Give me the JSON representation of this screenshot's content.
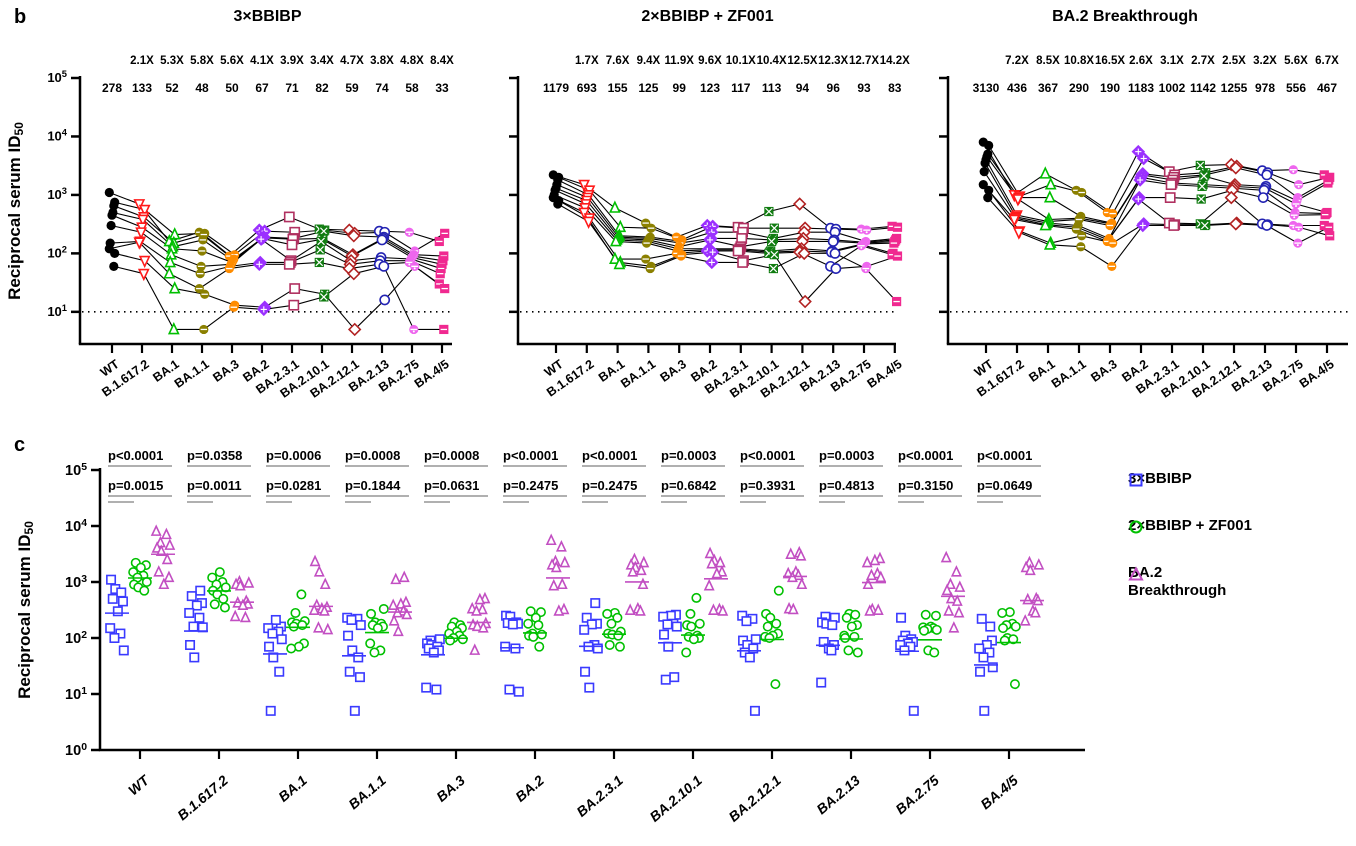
{
  "figure": {
    "panel_b_letter": "b",
    "panel_c_letter": "c",
    "y_axis_label": "Reciprocal serum ID",
    "y_axis_label_sub": "50"
  },
  "categories": [
    "WT",
    "B.1.617.2",
    "BA.1",
    "BA.1.1",
    "BA.3",
    "BA.2",
    "BA.2.3.1",
    "BA.2.10.1",
    "BA.2.12.1",
    "BA.2.13",
    "BA.2.75",
    "BA.4/5"
  ],
  "category_colors": [
    "#000000",
    "#FF1A1A",
    "#00BF00",
    "#8B8000",
    "#FF8C00",
    "#9B30FF",
    "#B03060",
    "#107C10",
    "#B22222",
    "#2222B2",
    "#EE66EE",
    "#F02990"
  ],
  "category_markers": [
    "circle-filled",
    "tri-down-open",
    "tri-up-open",
    "circle-half",
    "circle-dot",
    "diamond-cross",
    "square-open",
    "square-x",
    "diamond-open",
    "circle-open",
    "circle-half2",
    "square-filled"
  ],
  "lod": 10,
  "chart_data": {
    "type": "scatter",
    "note": "Panel b: paired neutralization titers (log10 scale) per serum across 12 variants, three cohorts. Panel c: same titers grouped per variant by cohort.",
    "panel_b": {
      "y_tick_exponents": [
        5,
        4,
        3,
        2,
        1
      ],
      "panels": [
        {
          "title": "3×BBIBP",
          "fold_changes": [
            "2.1X",
            "5.3X",
            "5.8X",
            "5.6X",
            "4.1X",
            "3.9X",
            "3.4X",
            "4.7X",
            "3.8X",
            "4.8X",
            "8.4X"
          ],
          "gmts": [
            278,
            133,
            52,
            48,
            50,
            67,
            71,
            82,
            59,
            74,
            58,
            33
          ],
          "series": [
            [
              1100,
              700,
              160,
              230,
              90,
              250,
              420,
              260,
              250,
              240,
              230,
              160
            ],
            [
              750,
              560,
              210,
              220,
              95,
              240,
              230,
              250,
              220,
              230,
              110,
              220
            ],
            [
              650,
              420,
              150,
              210,
              80,
              190,
              180,
              240,
              200,
              190,
              95,
              90
            ],
            [
              500,
              380,
              130,
              170,
              75,
              185,
              175,
              180,
              95,
              180,
              90,
              75
            ],
            [
              450,
              280,
              120,
              110,
              70,
              180,
              140,
              175,
              90,
              170,
              85,
              65
            ],
            [
              300,
              230,
              95,
              60,
              65,
              175,
              75,
              160,
              75,
              85,
              80,
              55
            ],
            [
              150,
              160,
              70,
              45,
              60,
              70,
              70,
              115,
              65,
              75,
              75,
              45
            ],
            [
              120,
              155,
              45,
              25,
              55,
              65,
              65,
              70,
              55,
              65,
              70,
              30
            ],
            [
              100,
              75,
              25,
              20,
              13,
              12,
              25,
              20,
              5,
              16,
              60,
              25
            ],
            [
              60,
              45,
              5,
              5,
              12,
              11,
              13,
              18,
              45,
              60,
              5,
              5
            ]
          ]
        },
        {
          "title": "2×BBIBP + ZF001",
          "fold_changes": [
            "1.7X",
            "7.6X",
            "9.4X",
            "11.9X",
            "9.6X",
            "10.1X",
            "10.4X",
            "12.5X",
            "12.3X",
            "12.7X",
            "14.2X"
          ],
          "gmts": [
            1179,
            693,
            155,
            125,
            99,
            123,
            117,
            113,
            94,
            96,
            93,
            83
          ],
          "series": [
            [
              2200,
              1500,
              600,
              330,
              190,
              300,
              280,
              520,
              700,
              270,
              260,
              290
            ],
            [
              2000,
              1200,
              280,
              270,
              170,
              290,
              270,
              270,
              270,
              260,
              250,
              280
            ],
            [
              1800,
              1000,
              200,
              190,
              160,
              230,
              230,
              180,
              230,
              230,
              160,
              180
            ],
            [
              1500,
              900,
              190,
              180,
              150,
              180,
              180,
              170,
              180,
              170,
              155,
              170
            ],
            [
              1300,
              800,
              180,
              170,
              130,
              170,
              130,
              160,
              160,
              160,
              150,
              160
            ],
            [
              1200,
              700,
              170,
              160,
              120,
              120,
              120,
              110,
              120,
              110,
              145,
              150
            ],
            [
              1000,
              600,
              160,
              150,
              110,
              115,
              115,
              105,
              110,
              105,
              140,
              100
            ],
            [
              900,
              500,
              80,
              80,
              100,
              110,
              110,
              100,
              105,
              60,
              135,
              95
            ],
            [
              800,
              400,
              70,
              60,
              95,
              105,
              75,
              95,
              15,
              55,
              60,
              90
            ],
            [
              700,
              350,
              65,
              55,
              90,
              70,
              70,
              55,
              100,
              100,
              55,
              15
            ]
          ]
        },
        {
          "title": "BA.2 Breakthrough",
          "fold_changes": [
            "7.2X",
            "8.5X",
            "10.8X",
            "16.5X",
            "2.6X",
            "3.1X",
            "2.7X",
            "2.5X",
            "3.2X",
            "5.6X",
            "6.7X"
          ],
          "gmts": [
            3130,
            436,
            367,
            290,
            190,
            1183,
            1002,
            1142,
            1255,
            978,
            556,
            467
          ],
          "series": [
            [
              8000,
              1000,
              2300,
              1200,
              500,
              5500,
              2500,
              3200,
              3300,
              2600,
              2700,
              2200
            ],
            [
              7000,
              950,
              1500,
              1100,
              480,
              4200,
              2200,
              2400,
              3100,
              2400,
              1500,
              2000
            ],
            [
              5000,
              900,
              900,
              430,
              330,
              2300,
              2000,
              2200,
              2900,
              2200,
              900,
              1800
            ],
            [
              4500,
              850,
              380,
              400,
              320,
              2200,
              1800,
              2100,
              1500,
              1400,
              800,
              1600
            ],
            [
              4000,
              450,
              350,
              380,
              300,
              2000,
              1600,
              1500,
              1400,
              1300,
              700,
              500
            ],
            [
              3500,
              420,
              330,
              300,
              180,
              1800,
              1500,
              1400,
              1300,
              1200,
              500,
              480
            ],
            [
              2500,
              400,
              310,
              280,
              170,
              900,
              900,
              850,
              1200,
              900,
              450,
              460
            ],
            [
              1500,
              380,
              300,
              260,
              160,
              850,
              330,
              320,
              900,
              320,
              300,
              300
            ],
            [
              1200,
              240,
              150,
              200,
              150,
              320,
              310,
              310,
              330,
              310,
              280,
              200
            ],
            [
              900,
              230,
              140,
              130,
              60,
              300,
              300,
              300,
              320,
              300,
              150,
              280
            ]
          ]
        }
      ]
    },
    "panel_c": {
      "y_tick_exponents": [
        0,
        1,
        2,
        3,
        4,
        5
      ],
      "p_top": [
        "p<0.0001",
        "p=0.0358",
        "p=0.0006",
        "p=0.0008",
        "p=0.0008",
        "p<0.0001",
        "p<0.0001",
        "p=0.0003",
        "p<0.0001",
        "p=0.0003",
        "p<0.0001",
        "p<0.0001"
      ],
      "p_bottom": [
        "p=0.0015",
        "p=0.0011",
        "p=0.0281",
        "p=0.1844",
        "p=0.0631",
        "p=0.2475",
        "p=0.2475",
        "p=0.6842",
        "p=0.3931",
        "p=0.4813",
        "p=0.3150",
        "p=0.0649"
      ],
      "groups": [
        {
          "label_line1": "3×BBIBP",
          "label_line2": "",
          "color": "#3A3AFF",
          "marker": "square-open"
        },
        {
          "label_line1": "2×BBIBP + ZF001",
          "label_line2": "",
          "color": "#00C000",
          "marker": "circle-open"
        },
        {
          "label_line1": "BA.2",
          "label_line2": "Breakthrough",
          "color": "#C24FC2",
          "marker": "tri-up-open"
        }
      ]
    }
  }
}
